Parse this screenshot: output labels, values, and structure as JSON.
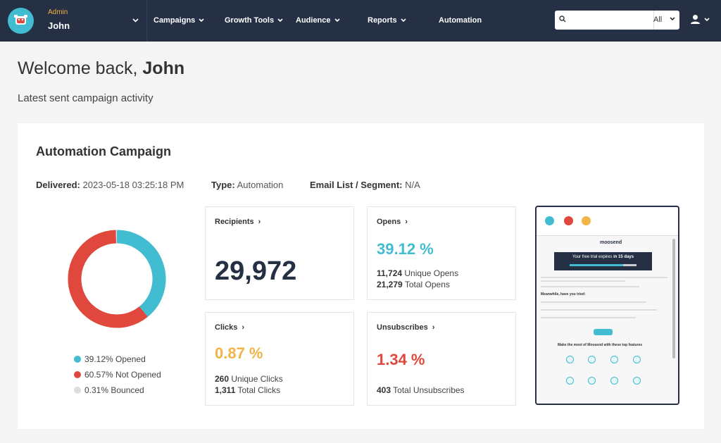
{
  "header": {
    "account_role": "Admin",
    "account_name": "John",
    "nav": [
      {
        "label": "Campaigns",
        "has_menu": true
      },
      {
        "label": "Growth Tools",
        "has_menu": true
      },
      {
        "label": "Audience",
        "has_menu": true
      },
      {
        "label": "Reports",
        "has_menu": true
      },
      {
        "label": "Automation",
        "has_menu": false
      }
    ],
    "search": {
      "value": "",
      "placeholder": "",
      "scope": "All"
    }
  },
  "welcome": {
    "prefix": "Welcome back, ",
    "name": "John"
  },
  "subtitle": "Latest sent campaign activity",
  "campaign": {
    "title": "Automation Campaign",
    "delivered_label": "Delivered:",
    "delivered_value": "2023-05-18 03:25:18 PM",
    "type_label": "Type:",
    "type_value": "Automation",
    "list_label": "Email List / Segment:",
    "list_value": "N/A"
  },
  "chart_data": {
    "type": "pie",
    "donut": true,
    "slices": [
      {
        "label": "Opened",
        "value": 39.12,
        "display": "39.12% Opened",
        "color": "#41bcd1"
      },
      {
        "label": "Not Opened",
        "value": 60.57,
        "display": "60.57% Not Opened",
        "color": "#e0473d"
      },
      {
        "label": "Bounced",
        "value": 0.31,
        "display": "0.31% Bounced",
        "color": "#dddddd"
      }
    ]
  },
  "stats": {
    "recipients": {
      "title": "Recipients",
      "value": "29,972"
    },
    "opens": {
      "title": "Opens",
      "rate": "39.12 %",
      "unique_num": "11,724",
      "unique_label": "Unique Opens",
      "total_num": "21,279",
      "total_label": "Total Opens"
    },
    "clicks": {
      "title": "Clicks",
      "rate": "0.87 %",
      "unique_num": "260",
      "unique_label": "Unique Clicks",
      "total_num": "1,311",
      "total_label": "Total Clicks"
    },
    "unsubscribes": {
      "title": "Unsubscribes",
      "rate": "1.34 %",
      "total_num": "403",
      "total_label": "Total Unsubscribes"
    }
  },
  "preview": {
    "brand": "moosend",
    "banner_prefix": "Your free trial expires ",
    "banner_bold": "in 15 days",
    "trial_progress": 0.8,
    "heading1": "Meanwhile, have you tried:",
    "heading2": "Make the most of Moosend with these top features"
  },
  "colors": {
    "accent": "#41bcd1",
    "danger": "#e0473d",
    "warning": "#f2b347",
    "navy": "#253044"
  }
}
